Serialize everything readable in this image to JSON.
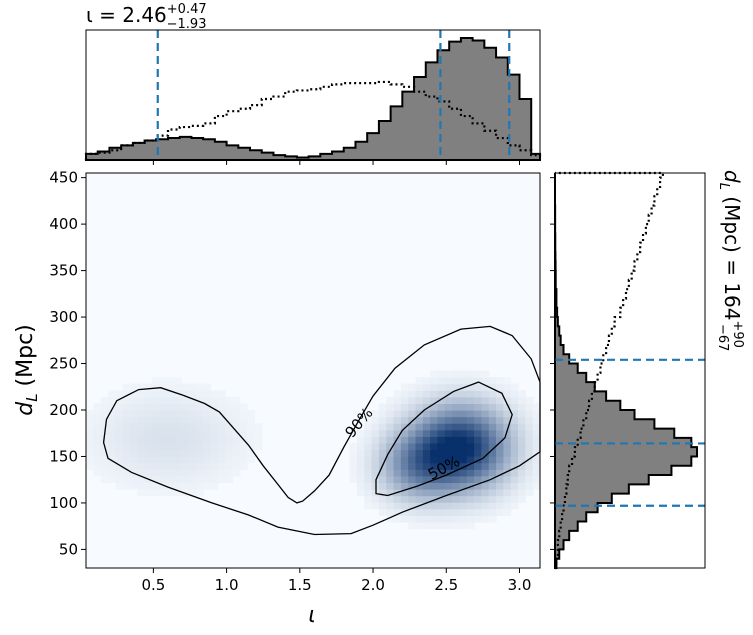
{
  "chart_data": {
    "type": "heatmap",
    "top_title": {
      "prefix": "ι = 2.46",
      "sup": "+0.47",
      "sub": "−1.93"
    },
    "right_title": {
      "prefix": "d",
      "prefix_sub": "L",
      "mid": " (Mpc) = 164",
      "sup": "+90",
      "sub": "−67"
    },
    "xlabel": "ι",
    "ylabel": {
      "main": "d",
      "sub": "L",
      "rest": " (Mpc)"
    },
    "xlim": [
      0.04,
      3.14
    ],
    "ylim": [
      30,
      455
    ],
    "xticks": [
      0.5,
      1.0,
      1.5,
      2.0,
      2.5,
      3.0
    ],
    "xtick_labels": [
      "0.5",
      "1.0",
      "1.5",
      "2.0",
      "2.5",
      "3.0"
    ],
    "yticks": [
      50,
      100,
      150,
      200,
      250,
      300,
      350,
      400,
      450
    ],
    "ytick_labels": [
      "50",
      "100",
      "150",
      "200",
      "250",
      "300",
      "350",
      "400",
      "450"
    ],
    "contour_labels": [
      {
        "text": "90%",
        "x": 1.93,
        "y": 183
      },
      {
        "text": "50%",
        "x": 2.5,
        "y": 133
      }
    ],
    "density_peaks": [
      {
        "x": 2.6,
        "y": 160,
        "amp": 1.0,
        "sx": 0.22,
        "sy": 30
      },
      {
        "x": 2.3,
        "y": 140,
        "amp": 0.45,
        "sx": 0.18,
        "sy": 25
      },
      {
        "x": 0.6,
        "y": 170,
        "amp": 0.1,
        "sx": 0.35,
        "sy": 35
      }
    ],
    "contour_90": [
      [
        0.19,
        148
      ],
      [
        0.16,
        165
      ],
      [
        0.18,
        190
      ],
      [
        0.25,
        210
      ],
      [
        0.4,
        222
      ],
      [
        0.55,
        224
      ],
      [
        0.7,
        216
      ],
      [
        0.85,
        207
      ],
      [
        0.95,
        198
      ],
      [
        1.05,
        180
      ],
      [
        1.15,
        162
      ],
      [
        1.25,
        140
      ],
      [
        1.35,
        120
      ],
      [
        1.42,
        106
      ],
      [
        1.48,
        100
      ],
      [
        1.52,
        102
      ],
      [
        1.6,
        113
      ],
      [
        1.7,
        130
      ],
      [
        1.8,
        160
      ],
      [
        1.9,
        188
      ],
      [
        2.0,
        215
      ],
      [
        2.15,
        245
      ],
      [
        2.35,
        270
      ],
      [
        2.6,
        287
      ],
      [
        2.8,
        290
      ],
      [
        2.95,
        280
      ],
      [
        3.08,
        255
      ],
      [
        3.14,
        230
      ],
      [
        3.14,
        155
      ],
      [
        3.0,
        140
      ],
      [
        2.8,
        125
      ],
      [
        2.5,
        108
      ],
      [
        2.2,
        90
      ],
      [
        2.0,
        76
      ],
      [
        1.85,
        67
      ],
      [
        1.6,
        66
      ],
      [
        1.35,
        74
      ],
      [
        1.15,
        87
      ],
      [
        0.9,
        100
      ],
      [
        0.6,
        117
      ],
      [
        0.35,
        133
      ],
      [
        0.19,
        148
      ]
    ],
    "contour_50": [
      [
        2.02,
        110
      ],
      [
        2.02,
        125
      ],
      [
        2.1,
        152
      ],
      [
        2.2,
        178
      ],
      [
        2.35,
        200
      ],
      [
        2.55,
        220
      ],
      [
        2.72,
        230
      ],
      [
        2.88,
        218
      ],
      [
        2.95,
        195
      ],
      [
        2.9,
        170
      ],
      [
        2.75,
        148
      ],
      [
        2.5,
        130
      ],
      [
        2.3,
        118
      ],
      [
        2.1,
        108
      ],
      [
        2.02,
        110
      ]
    ],
    "marginal_x": {
      "bins": [
        0.04,
        0.12,
        0.2,
        0.28,
        0.36,
        0.44,
        0.52,
        0.6,
        0.68,
        0.76,
        0.84,
        0.92,
        1.0,
        1.08,
        1.16,
        1.24,
        1.32,
        1.4,
        1.48,
        1.56,
        1.64,
        1.72,
        1.8,
        1.88,
        1.96,
        2.04,
        2.12,
        2.2,
        2.28,
        2.36,
        2.44,
        2.52,
        2.6,
        2.68,
        2.76,
        2.84,
        2.92,
        3.0,
        3.08,
        3.14
      ],
      "density": [
        0.05,
        0.07,
        0.1,
        0.12,
        0.14,
        0.16,
        0.17,
        0.18,
        0.19,
        0.18,
        0.17,
        0.15,
        0.12,
        0.1,
        0.08,
        0.06,
        0.04,
        0.03,
        0.02,
        0.03,
        0.05,
        0.07,
        0.1,
        0.15,
        0.22,
        0.32,
        0.44,
        0.56,
        0.68,
        0.8,
        0.9,
        0.97,
        1.0,
        0.98,
        0.92,
        0.84,
        0.7,
        0.5,
        0.05
      ],
      "prior": [
        0.05,
        0.06,
        0.08,
        0.12,
        0.14,
        0.16,
        0.2,
        0.25,
        0.27,
        0.28,
        0.3,
        0.36,
        0.4,
        0.42,
        0.45,
        0.5,
        0.52,
        0.56,
        0.57,
        0.58,
        0.6,
        0.62,
        0.63,
        0.63,
        0.63,
        0.64,
        0.62,
        0.6,
        0.56,
        0.52,
        0.48,
        0.42,
        0.36,
        0.3,
        0.24,
        0.18,
        0.12,
        0.08,
        0.04
      ],
      "quantiles": [
        0.53,
        2.46,
        2.93
      ]
    },
    "marginal_y": {
      "bins": [
        30,
        40,
        50,
        60,
        70,
        80,
        90,
        100,
        110,
        120,
        130,
        140,
        150,
        160,
        170,
        180,
        190,
        200,
        210,
        220,
        230,
        240,
        250,
        260,
        270,
        280,
        290,
        300,
        310,
        320,
        330,
        340,
        350,
        360,
        370,
        380,
        390,
        400,
        410,
        420,
        430,
        440,
        450,
        455
      ],
      "density": [
        0.01,
        0.03,
        0.06,
        0.1,
        0.16,
        0.22,
        0.3,
        0.4,
        0.52,
        0.66,
        0.82,
        0.96,
        1.0,
        0.96,
        0.84,
        0.7,
        0.56,
        0.46,
        0.36,
        0.28,
        0.22,
        0.16,
        0.1,
        0.06,
        0.04,
        0.03,
        0.02,
        0.015,
        0.01,
        0.01,
        0.005,
        0.005,
        0.004,
        0.003,
        0.002,
        0.002,
        0.001,
        0.001,
        0.001,
        0,
        0,
        0,
        0
      ],
      "prior": [
        0.01,
        0.02,
        0.02,
        0.03,
        0.04,
        0.05,
        0.06,
        0.07,
        0.08,
        0.09,
        0.1,
        0.12,
        0.14,
        0.16,
        0.18,
        0.2,
        0.22,
        0.24,
        0.26,
        0.28,
        0.3,
        0.32,
        0.34,
        0.36,
        0.38,
        0.4,
        0.42,
        0.46,
        0.48,
        0.5,
        0.52,
        0.54,
        0.56,
        0.58,
        0.6,
        0.62,
        0.64,
        0.66,
        0.68,
        0.7,
        0.72,
        0.74,
        0.76
      ],
      "quantiles": [
        97,
        164,
        254
      ]
    },
    "colors": {
      "heat_low": "#f7fbff",
      "heat_high": "#08306b",
      "hist_fill": "#808080",
      "quantile": "#1f77b4",
      "line": "#000000"
    }
  }
}
